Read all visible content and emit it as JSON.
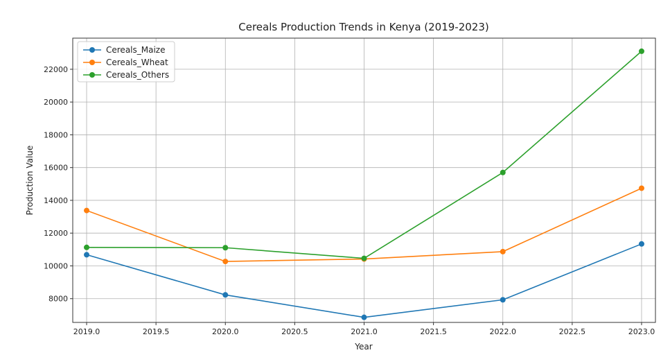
{
  "chart_data": {
    "type": "line",
    "title": "Cereals Production Trends in Kenya (2019-2023)",
    "xlabel": "Year",
    "ylabel": "Production Value",
    "x": [
      2019.0,
      2020.0,
      2021.0,
      2022.0,
      2023.0
    ],
    "xticks": [
      "2019.0",
      "2019.5",
      "2020.0",
      "2020.5",
      "2021.0",
      "2021.5",
      "2022.0",
      "2022.5",
      "2023.0"
    ],
    "yticks": [
      "8000",
      "10000",
      "12000",
      "14000",
      "16000",
      "18000",
      "20000",
      "22000"
    ],
    "xlim": [
      2018.9,
      2023.1
    ],
    "ylim": [
      6550,
      23900
    ],
    "grid": true,
    "legend_position": "top-left",
    "series": [
      {
        "name": "Cereals_Maize",
        "color": "#1f77b4",
        "values": [
          10680,
          8230,
          6860,
          7930,
          11340
        ]
      },
      {
        "name": "Cereals_Wheat",
        "color": "#ff7f0e",
        "values": [
          13380,
          10270,
          10420,
          10870,
          14740
        ]
      },
      {
        "name": "Cereals_Others",
        "color": "#2ca02c",
        "values": [
          11130,
          11110,
          10460,
          15700,
          23100
        ]
      }
    ]
  }
}
